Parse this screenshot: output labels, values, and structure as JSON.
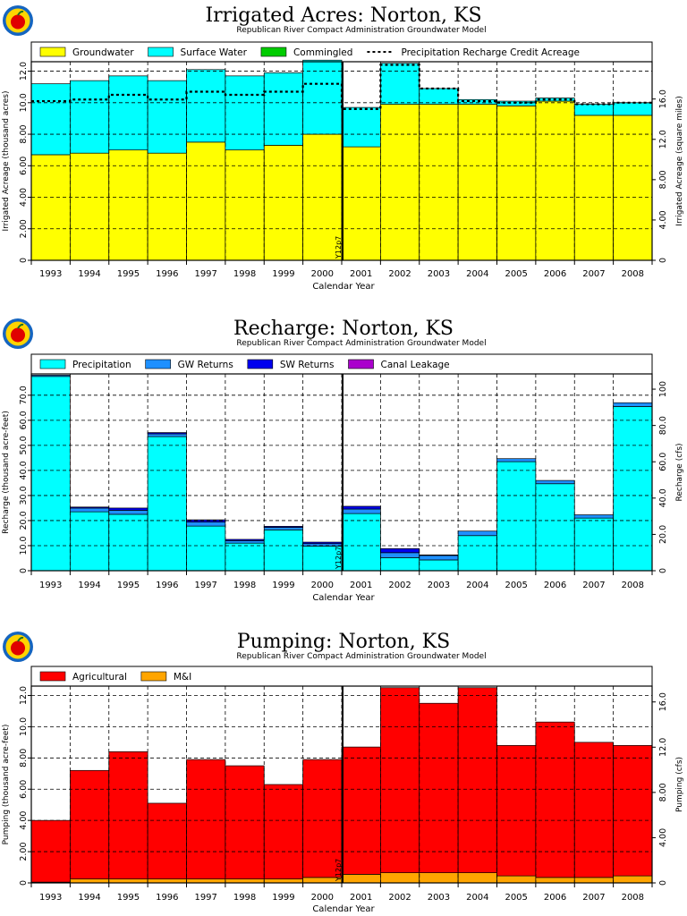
{
  "chart_data": [
    {
      "type": "bar",
      "title": "Irrigated  Acres:  Norton,  KS",
      "subtitle": "Republican  River  Compact  Administration  Groundwater  Model",
      "xlabel": "Calendar  Year",
      "ylabel": "Irrigated  Acreage  (thousand  acres)",
      "ylabel_right": "Irrigated  Acreage  (square  miles)",
      "categories": [
        "1993",
        "1994",
        "1995",
        "1996",
        "1997",
        "1998",
        "1999",
        "2000",
        "2001",
        "2002",
        "2003",
        "2004",
        "2005",
        "2006",
        "2007",
        "2008"
      ],
      "ylim": [
        0,
        12.6
      ],
      "yticks": [
        0,
        2.0,
        4.0,
        6.0,
        8.0,
        10.0,
        12.0
      ],
      "ytick_labels": [
        "0",
        "2.00",
        "4.00",
        "6.00",
        "8.00",
        "10.0",
        "12.0"
      ],
      "ylim_right": [
        0,
        19.7
      ],
      "yticks_right": [
        0,
        4.0,
        8.0,
        12.0,
        16.0
      ],
      "ytick_labels_right": [
        "0",
        "4.00",
        "8.00",
        "12.0",
        "16.0"
      ],
      "stacked": true,
      "series": [
        {
          "name": "Groundwater",
          "color": "#ffff00",
          "values": [
            6.7,
            6.8,
            7.0,
            6.8,
            7.5,
            7.0,
            7.3,
            8.0,
            7.2,
            9.9,
            9.9,
            9.9,
            9.8,
            10.1,
            9.2,
            9.2
          ]
        },
        {
          "name": "Surface  Water",
          "color": "#00ffff",
          "values": [
            4.5,
            4.6,
            4.7,
            4.6,
            4.6,
            4.7,
            4.6,
            4.7,
            2.5,
            2.6,
            1.0,
            0.3,
            0.3,
            0.2,
            0.7,
            0.8
          ]
        },
        {
          "name": "Commingled",
          "color": "#00cc00",
          "values": [
            0,
            0,
            0,
            0,
            0,
            0,
            0,
            0,
            0,
            0,
            0,
            0,
            0,
            0,
            0,
            0
          ]
        }
      ],
      "line_series": {
        "name": "Precipitation  Recharge  Credit  Acreage",
        "style": "dashed",
        "values": [
          10.1,
          10.2,
          10.5,
          10.2,
          10.7,
          10.5,
          10.7,
          11.2,
          9.6,
          12.4,
          10.9,
          10.1,
          10.0,
          10.2,
          9.9,
          10.0
        ]
      },
      "marker_label": "Y12p7",
      "grid": true,
      "legend": "top"
    },
    {
      "type": "bar",
      "title": "Recharge:  Norton,  KS",
      "subtitle": "Republican  River  Compact  Administration  Groundwater  Model",
      "xlabel": "Calendar  Year",
      "ylabel": "Recharge  (thousand  acre-feet)",
      "ylabel_right": "Recharge  (cfs)",
      "categories": [
        "1993",
        "1994",
        "1995",
        "1996",
        "1997",
        "1998",
        "1999",
        "2000",
        "2001",
        "2002",
        "2003",
        "2004",
        "2005",
        "2006",
        "2007",
        "2008"
      ],
      "ylim": [
        0,
        78.5
      ],
      "yticks": [
        0,
        10.0,
        20.0,
        30.0,
        40.0,
        50.0,
        60.0,
        70.0
      ],
      "ytick_labels": [
        "0",
        "10.0",
        "20.0",
        "30.0",
        "40.0",
        "50.0",
        "60.0",
        "70.0"
      ],
      "ylim_right": [
        0,
        108.4
      ],
      "yticks_right": [
        0,
        20.0,
        40.0,
        60.0,
        80.0,
        100.0
      ],
      "ytick_labels_right": [
        "0",
        "20.0",
        "40.0",
        "60.0",
        "80.0",
        "100"
      ],
      "stacked": true,
      "series": [
        {
          "name": "Precipitation",
          "color": "#00ffff",
          "values": [
            77.5,
            23.5,
            22.5,
            53.5,
            17.8,
            11.0,
            16.3,
            9.8,
            22.8,
            5.2,
            4.3,
            14.0,
            43.5,
            34.7,
            21.0,
            65.5
          ]
        },
        {
          "name": "GW  Returns",
          "color": "#1e90ff",
          "values": [
            0.5,
            1.5,
            1.6,
            1.1,
            1.6,
            1.0,
            1.0,
            1.0,
            1.8,
            2.0,
            1.8,
            1.8,
            1.2,
            1.3,
            1.3,
            1.5
          ]
        },
        {
          "name": "SW  Returns",
          "color": "#0000ee",
          "values": [
            0,
            0.4,
            0.9,
            0.5,
            0.9,
            0.5,
            0.4,
            0.6,
            1.1,
            1.6,
            0.2,
            0,
            0,
            0,
            0,
            0
          ]
        },
        {
          "name": "Canal  Leakage",
          "color": "#aa00cc",
          "values": [
            0,
            0,
            0,
            0,
            0,
            0,
            0,
            0,
            0,
            0,
            0,
            0,
            0,
            0,
            0,
            0
          ]
        }
      ],
      "marker_label": "Y12p7",
      "grid": true,
      "legend": "top"
    },
    {
      "type": "bar",
      "title": "Pumping:  Norton,  KS",
      "subtitle": "Republican  River  Compact  Administration  Groundwater  Model",
      "xlabel": "Calendar  Year",
      "ylabel": "Pumping  (thousand  acre-feet)",
      "ylabel_right": "Pumping  (cfs)",
      "categories": [
        "1993",
        "1994",
        "1995",
        "1996",
        "1997",
        "1998",
        "1999",
        "2000",
        "2001",
        "2002",
        "2003",
        "2004",
        "2005",
        "2006",
        "2007",
        "2008"
      ],
      "ylim": [
        0,
        12.6
      ],
      "yticks": [
        0,
        2.0,
        4.0,
        6.0,
        8.0,
        10.0,
        12.0
      ],
      "ytick_labels": [
        "0",
        "2.00",
        "4.00",
        "6.00",
        "8.00",
        "10.0",
        "12.0"
      ],
      "ylim_right": [
        0,
        17.4
      ],
      "yticks_right": [
        0,
        4.0,
        8.0,
        12.0,
        16.0
      ],
      "ytick_labels_right": [
        "0",
        "4.00",
        "8.00",
        "12.0",
        "16.0"
      ],
      "stacked": true,
      "series": [
        {
          "name": "M&I",
          "color": "#ffa500",
          "values": [
            0.05,
            0.25,
            0.25,
            0.25,
            0.25,
            0.25,
            0.25,
            0.35,
            0.55,
            0.65,
            0.65,
            0.65,
            0.45,
            0.35,
            0.35,
            0.45
          ]
        },
        {
          "name": "Agricultural",
          "color": "#ff0000",
          "values": [
            3.95,
            6.95,
            8.15,
            4.85,
            7.65,
            7.25,
            6.05,
            7.55,
            8.15,
            11.85,
            10.85,
            11.85,
            8.35,
            9.95,
            8.65,
            8.35
          ]
        }
      ],
      "legend_order": [
        "Agricultural",
        "M&I"
      ],
      "marker_label": "Y12p7",
      "grid": true,
      "legend": "top"
    }
  ]
}
